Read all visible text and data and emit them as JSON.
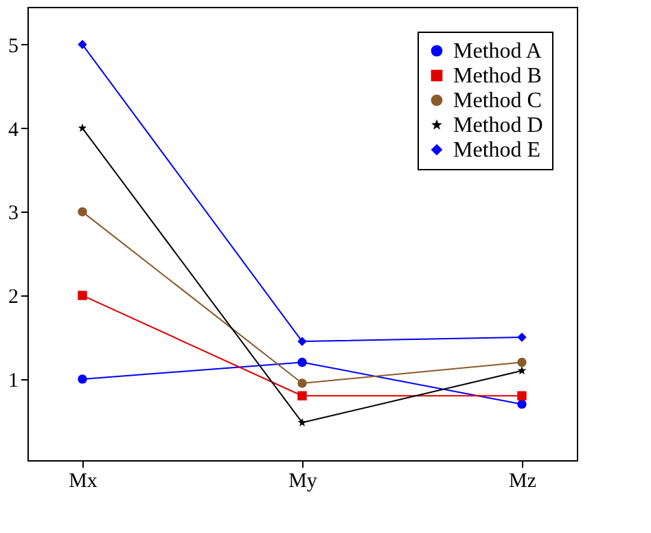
{
  "chart_data": {
    "type": "line",
    "categories": [
      "Mx",
      "My",
      "Mz"
    ],
    "series": [
      {
        "name": "Method A",
        "color": "#0000ff",
        "marker": "circle",
        "values": [
          1,
          1.2,
          0.7
        ]
      },
      {
        "name": "Method B",
        "color": "#e00000",
        "marker": "square",
        "values": [
          2,
          0.8,
          0.8
        ]
      },
      {
        "name": "Method C",
        "color": "#8b5a2b",
        "marker": "circle",
        "values": [
          3,
          0.95,
          1.2
        ]
      },
      {
        "name": "Method D",
        "color": "#000000",
        "marker": "star",
        "values": [
          4,
          0.48,
          1.1
        ]
      },
      {
        "name": "Method E",
        "color": "#0000ff",
        "marker": "diamond",
        "values": [
          5,
          1.45,
          1.5
        ]
      }
    ],
    "ylim": [
      0.03,
      5.45
    ],
    "yticks": [
      1,
      2,
      3,
      4,
      5
    ],
    "grid": false,
    "legend": "top right",
    "line_style": "solid"
  }
}
